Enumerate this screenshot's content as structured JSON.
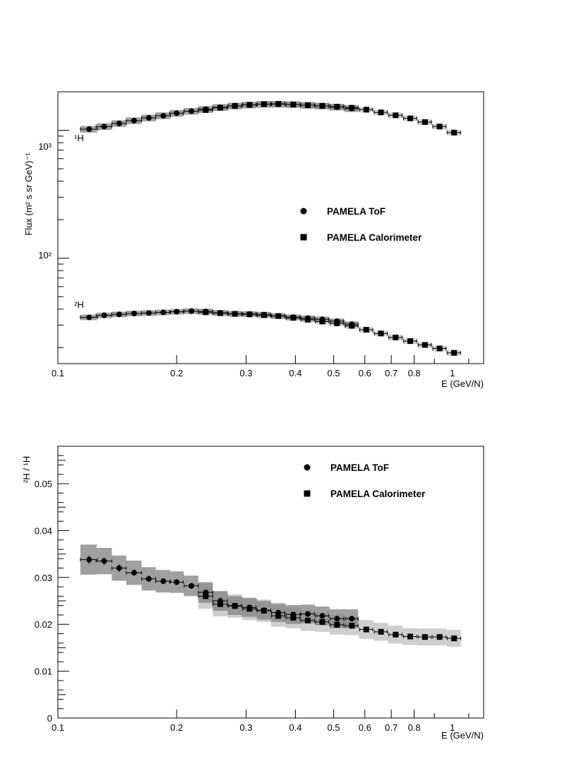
{
  "chart_data": [
    {
      "type": "scatter",
      "ylabel": "Flux (m² s sr GeV)⁻¹",
      "xlabel": "E (GeV/N)",
      "xscale": "log",
      "yscale": "log",
      "xlim": [
        0.1,
        1.2
      ],
      "ylim": [
        15,
        2000
      ],
      "x_ticks": [
        "0.1",
        "0.2",
        "0.3",
        "0.4",
        "0.5",
        "0.6",
        "0.7",
        "0.8",
        "1"
      ],
      "y_ticks": [
        "10³",
        "10²"
      ],
      "annotations": [
        {
          "text": "¹H",
          "x": 0.115,
          "y": 1130
        },
        {
          "text": "²H",
          "x": 0.115,
          "y": 40
        }
      ],
      "legend": {
        "placement": "center-right",
        "entries": [
          "PAMELA ToF",
          "PAMELA Calorimeter"
        ]
      },
      "series": [
        {
          "name": "PAMELA ToF",
          "group": "¹H",
          "marker": "circle",
          "x": [
            0.12,
            0.131,
            0.143,
            0.156,
            0.17,
            0.185,
            0.2,
            0.218,
            0.237,
            0.258,
            0.281,
            0.306,
            0.333,
            0.362,
            0.395,
            0.43,
            0.468,
            0.51,
            0.556
          ],
          "y": [
            1020,
            1070,
            1130,
            1190,
            1250,
            1300,
            1360,
            1410,
            1460,
            1510,
            1550,
            1580,
            1600,
            1600,
            1590,
            1570,
            1550,
            1520,
            1480
          ],
          "xerr": [
            0.006,
            0.006,
            0.006,
            0.007,
            0.007,
            0.008,
            0.008,
            0.009,
            0.01,
            0.011,
            0.011,
            0.012,
            0.013,
            0.014,
            0.016,
            0.017,
            0.018,
            0.02,
            0.021
          ],
          "sys_band": [
            0.06,
            0.06
          ]
        },
        {
          "name": "PAMELA Calorimeter",
          "group": "¹H",
          "marker": "square",
          "x": [
            0.237,
            0.258,
            0.281,
            0.306,
            0.333,
            0.362,
            0.395,
            0.43,
            0.468,
            0.51,
            0.556,
            0.605,
            0.659,
            0.718,
            0.782,
            0.852,
            0.928,
            1.01
          ],
          "y": [
            1440,
            1500,
            1550,
            1580,
            1600,
            1610,
            1590,
            1570,
            1550,
            1530,
            1500,
            1450,
            1380,
            1310,
            1240,
            1160,
            1070,
            960
          ],
          "xerr": [
            0.01,
            0.011,
            0.011,
            0.012,
            0.013,
            0.014,
            0.016,
            0.017,
            0.018,
            0.02,
            0.021,
            0.023,
            0.025,
            0.028,
            0.03,
            0.033,
            0.036,
            0.04
          ],
          "sys_band": [
            0.05,
            0.05
          ]
        },
        {
          "name": "PAMELA ToF",
          "group": "²H",
          "marker": "circle",
          "x": [
            0.12,
            0.131,
            0.143,
            0.156,
            0.17,
            0.185,
            0.2,
            0.218,
            0.237,
            0.258,
            0.281,
            0.306,
            0.333,
            0.362,
            0.395,
            0.43,
            0.468,
            0.51,
            0.556
          ],
          "y": [
            34.5,
            35.8,
            36.4,
            37,
            37.3,
            37.7,
            38.2,
            38.6,
            38.3,
            37.4,
            36.8,
            36.6,
            36.2,
            35.4,
            34.6,
            34,
            33.3,
            32.2,
            30.5
          ],
          "xerr": [
            0.006,
            0.006,
            0.006,
            0.007,
            0.007,
            0.008,
            0.008,
            0.009,
            0.01,
            0.011,
            0.011,
            0.012,
            0.013,
            0.014,
            0.016,
            0.017,
            0.018,
            0.02,
            0.021
          ],
          "sys_band": [
            0.05,
            0.05
          ]
        },
        {
          "name": "PAMELA Calorimeter",
          "group": "²H",
          "marker": "square",
          "x": [
            0.237,
            0.258,
            0.281,
            0.306,
            0.333,
            0.362,
            0.395,
            0.43,
            0.468,
            0.51,
            0.556,
            0.605,
            0.659,
            0.718,
            0.782,
            0.852,
            0.928,
            1.01
          ],
          "y": [
            37.8,
            37.2,
            36.7,
            36.4,
            35.9,
            35.3,
            34.2,
            33.1,
            32,
            31,
            29.6,
            27.6,
            25.8,
            24,
            22.5,
            21,
            19.7,
            18.2
          ],
          "xerr": [
            0.01,
            0.011,
            0.011,
            0.012,
            0.013,
            0.014,
            0.016,
            0.017,
            0.018,
            0.02,
            0.021,
            0.023,
            0.025,
            0.028,
            0.03,
            0.033,
            0.036,
            0.04
          ],
          "sys_band": [
            0.05,
            0.05
          ]
        }
      ]
    },
    {
      "type": "scatter",
      "ylabel": "²H / ¹H",
      "xlabel": "E (GeV/N)",
      "xscale": "log",
      "yscale": "linear",
      "xlim": [
        0.1,
        1.2
      ],
      "ylim": [
        0,
        0.058
      ],
      "x_ticks": [
        "0.1",
        "0.2",
        "0.3",
        "0.4",
        "0.5",
        "0.6",
        "0.7",
        "0.8",
        "1"
      ],
      "y_ticks": [
        "0",
        "0.01",
        "0.02",
        "0.03",
        "0.04",
        "0.05"
      ],
      "legend": {
        "placement": "top-right",
        "entries": [
          "PAMELA ToF",
          "PAMELA Calorimeter"
        ]
      },
      "series": [
        {
          "name": "PAMELA ToF",
          "marker": "circle",
          "x": [
            0.12,
            0.131,
            0.143,
            0.156,
            0.17,
            0.185,
            0.2,
            0.218,
            0.237,
            0.258,
            0.281,
            0.306,
            0.333,
            0.362,
            0.395,
            0.43,
            0.468,
            0.51,
            0.556
          ],
          "y": [
            0.0338,
            0.0335,
            0.032,
            0.031,
            0.0297,
            0.0292,
            0.029,
            0.0282,
            0.0268,
            0.025,
            0.024,
            0.0236,
            0.023,
            0.0225,
            0.0221,
            0.0222,
            0.0218,
            0.0212,
            0.0212
          ],
          "xerr": [
            0.006,
            0.006,
            0.006,
            0.007,
            0.007,
            0.008,
            0.008,
            0.009,
            0.01,
            0.011,
            0.011,
            0.012,
            0.013,
            0.014,
            0.016,
            0.017,
            0.018,
            0.02,
            0.021
          ],
          "yerr": [
            0.0009,
            0.0008,
            0.0008,
            0.0007,
            0.0007,
            0.0006,
            0.0006,
            0.0006,
            0.0006,
            0.0005,
            0.0005,
            0.0005,
            0.0005,
            0.0005,
            0.0005,
            0.0005,
            0.0005,
            0.0005,
            0.0005
          ],
          "sys_band": [
            0.0032,
            0.0028,
            0.0027,
            0.0026,
            0.0025,
            0.0024,
            0.0023,
            0.0022,
            0.0022,
            0.0021,
            0.002,
            0.002,
            0.002,
            0.002,
            0.002,
            0.002,
            0.002,
            0.002,
            0.002
          ]
        },
        {
          "name": "PAMELA Calorimeter",
          "marker": "square",
          "x": [
            0.237,
            0.258,
            0.281,
            0.306,
            0.333,
            0.362,
            0.395,
            0.43,
            0.468,
            0.51,
            0.556,
            0.605,
            0.659,
            0.718,
            0.782,
            0.852,
            0.928,
            1.01
          ],
          "y": [
            0.026,
            0.0243,
            0.0239,
            0.0233,
            0.0229,
            0.0218,
            0.0214,
            0.0208,
            0.0205,
            0.0199,
            0.0197,
            0.0189,
            0.0184,
            0.0178,
            0.0174,
            0.0173,
            0.0173,
            0.017
          ],
          "xerr": [
            0.01,
            0.011,
            0.011,
            0.012,
            0.013,
            0.014,
            0.016,
            0.017,
            0.018,
            0.02,
            0.021,
            0.023,
            0.025,
            0.028,
            0.03,
            0.033,
            0.036,
            0.04
          ],
          "yerr": [
            0.0004,
            0.0004,
            0.0004,
            0.0004,
            0.0004,
            0.0004,
            0.0004,
            0.0004,
            0.0004,
            0.0004,
            0.0004,
            0.0004,
            0.0004,
            0.0004,
            0.0004,
            0.0004,
            0.0004,
            0.0004
          ],
          "sys_band": [
            0.0027,
            0.0026,
            0.0025,
            0.0024,
            0.0024,
            0.0023,
            0.0022,
            0.0022,
            0.0021,
            0.0021,
            0.002,
            0.002,
            0.0019,
            0.0019,
            0.0018,
            0.0018,
            0.0018,
            0.0018
          ]
        }
      ]
    }
  ]
}
